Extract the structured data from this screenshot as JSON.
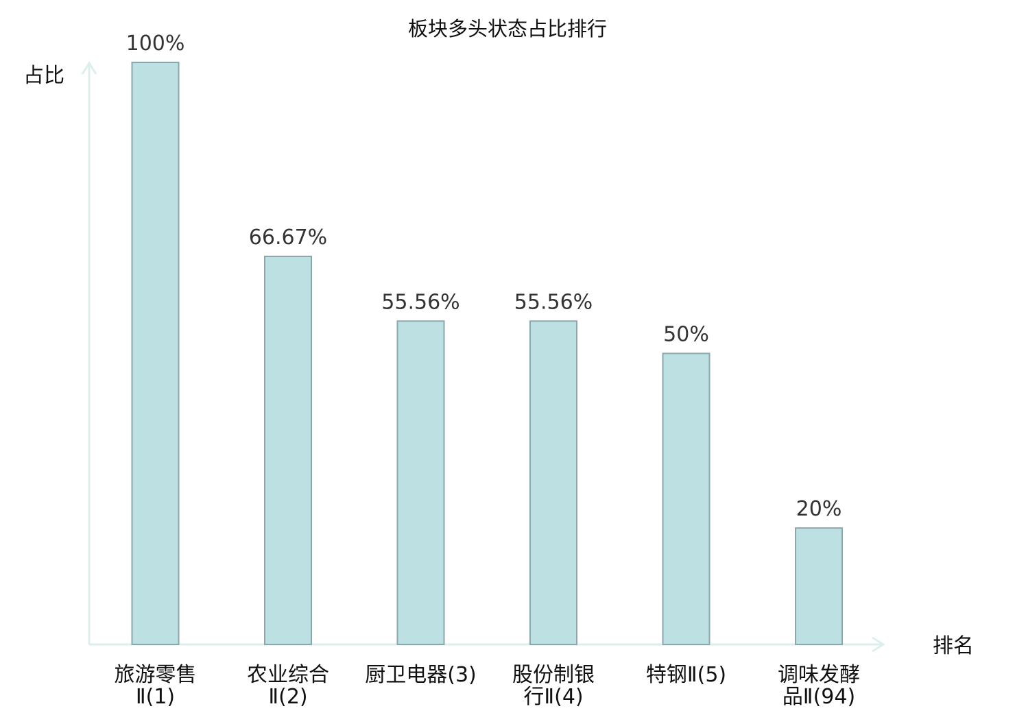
{
  "chart_data": {
    "type": "bar",
    "title": "板块多头状态占比排行",
    "ylabel": "占比",
    "xlabel": "排名",
    "ylim": [
      0,
      100
    ],
    "grid": false,
    "categories": [
      [
        "旅游零售",
        "Ⅱ(1)"
      ],
      [
        "农业综合",
        "Ⅱ(2)"
      ],
      [
        "厨卫电器(3)"
      ],
      [
        "股份制银",
        "行Ⅱ(4)"
      ],
      [
        "特钢Ⅱ(5)"
      ],
      [
        "调味发酵",
        "品Ⅱ(94)"
      ]
    ],
    "values": [
      100,
      66.67,
      55.56,
      55.56,
      50,
      20
    ],
    "value_labels": [
      "100%",
      "66.67%",
      "55.56%",
      "55.56%",
      "50%",
      "20%"
    ],
    "highlight_index": 5
  },
  "colors": {
    "bar_fill": "#bde0e3",
    "bar_stroke": "#8aa8ac",
    "axis": "#dcefed",
    "text": "#111111",
    "value_text": "#333333",
    "highlight": "#e01010"
  }
}
